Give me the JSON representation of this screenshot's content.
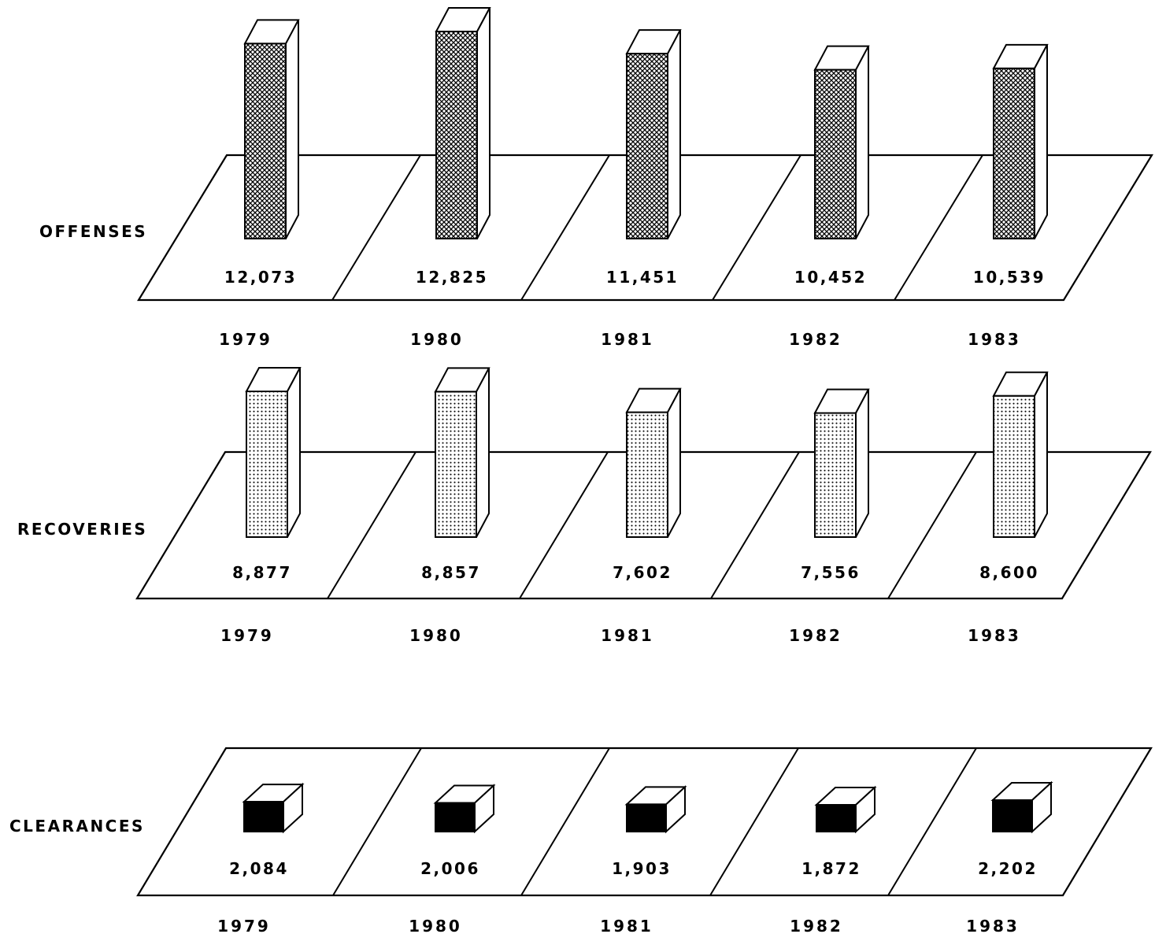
{
  "chart_data": {
    "type": "bar",
    "categories": [
      "1979",
      "1980",
      "1981",
      "1982",
      "1983"
    ],
    "series": [
      {
        "name": "OFFENSES",
        "values": [
          12073,
          12825,
          11451,
          10452,
          10539
        ],
        "value_labels": [
          "12,073",
          "12,825",
          "11,451",
          "10,452",
          "10,539"
        ],
        "pattern": "crosshatch"
      },
      {
        "name": "RECOVERIES",
        "values": [
          8877,
          8857,
          7602,
          7556,
          8600
        ],
        "value_labels": [
          "8,877",
          "8,857",
          "7,602",
          "7,556",
          "8,600"
        ],
        "pattern": "dots"
      },
      {
        "name": "CLEARANCES",
        "values": [
          2084,
          2006,
          1903,
          1872,
          2202
        ],
        "value_labels": [
          "2,084",
          "2,006",
          "1,903",
          "1,872",
          "2,202"
        ],
        "pattern": "solid"
      }
    ],
    "title": "",
    "xlabel": "",
    "ylabel": "",
    "grid": false,
    "legend": "none",
    "colors": {
      "ink": "#000000",
      "paper": "#ffffff"
    }
  }
}
